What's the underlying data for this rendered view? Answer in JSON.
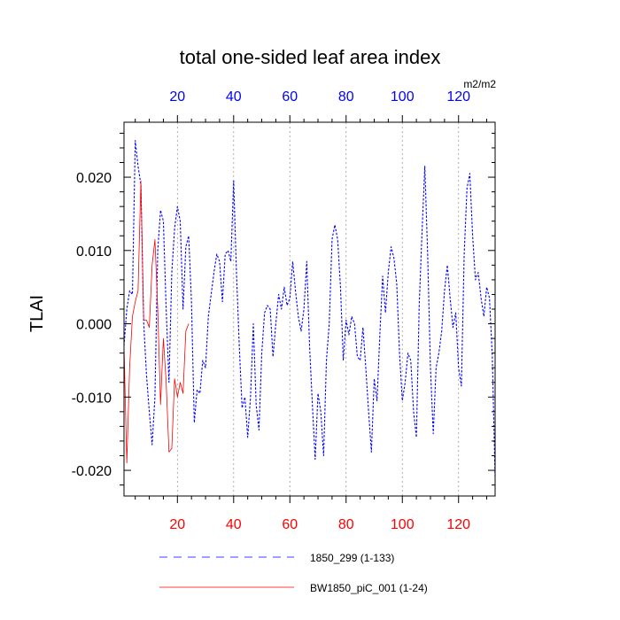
{
  "chart_data": {
    "type": "line",
    "title": "total one-sided leaf area index",
    "ylabel": "TLAI",
    "units_label": "m2/m2",
    "xlim": [
      1,
      133
    ],
    "ylim": [
      -0.0235,
      0.0275
    ],
    "grid": "vertical dotted lines at top-axis ticks",
    "legend_placement": "bottom",
    "top_axis": {
      "color": "#0000ff",
      "ticks": [
        20,
        40,
        60,
        80,
        100,
        120
      ],
      "tick_labels": [
        "20",
        "40",
        "60",
        "80",
        "100",
        "120"
      ]
    },
    "bottom_axis": {
      "color": "#ff0000",
      "ticks": [
        20,
        40,
        60,
        80,
        100,
        120
      ],
      "tick_labels": [
        "20",
        "40",
        "60",
        "80",
        "100",
        "120"
      ]
    },
    "left_axis": {
      "ticks": [
        -0.02,
        -0.01,
        0.0,
        0.01,
        0.02
      ],
      "tick_labels": [
        "-0.020",
        "-0.010",
        "0.000",
        "0.010",
        "0.020"
      ]
    },
    "series": [
      {
        "name": "1850_299 (1-133)",
        "color": "#0000ff",
        "dash": "dashed",
        "x": [
          1,
          2,
          3,
          4,
          5,
          6,
          7,
          8,
          9,
          10,
          11,
          12,
          13,
          14,
          15,
          16,
          17,
          18,
          19,
          20,
          21,
          22,
          23,
          24,
          25,
          26,
          27,
          28,
          29,
          30,
          31,
          32,
          33,
          34,
          35,
          36,
          37,
          38,
          39,
          40,
          41,
          42,
          43,
          44,
          45,
          46,
          47,
          48,
          49,
          50,
          51,
          52,
          53,
          54,
          55,
          56,
          57,
          58,
          59,
          60,
          61,
          62,
          63,
          64,
          65,
          66,
          67,
          68,
          69,
          70,
          71,
          72,
          73,
          74,
          75,
          76,
          77,
          78,
          79,
          80,
          81,
          82,
          83,
          84,
          85,
          86,
          87,
          88,
          89,
          90,
          91,
          92,
          93,
          94,
          95,
          96,
          97,
          98,
          99,
          100,
          101,
          102,
          103,
          104,
          105,
          106,
          107,
          108,
          109,
          110,
          111,
          112,
          113,
          114,
          115,
          116,
          117,
          118,
          119,
          120,
          121,
          122,
          123,
          124,
          125,
          126,
          127,
          128,
          129,
          130,
          131,
          132,
          133
        ],
        "y": [
          -0.003,
          0.002,
          0.0045,
          0.004,
          0.025,
          0.0215,
          0.019,
          0.0002,
          -0.007,
          -0.012,
          -0.0165,
          -0.01,
          0.01,
          0.0155,
          0.014,
          0.002,
          -0.008,
          0.007,
          0.013,
          0.016,
          0.014,
          0.002,
          0.0105,
          0.012,
          0.003,
          -0.0135,
          -0.009,
          -0.0095,
          -0.005,
          -0.006,
          0.001,
          0.004,
          0.007,
          0.0095,
          0.0085,
          0.003,
          0.0095,
          0.01,
          0.0085,
          0.0195,
          0.007,
          -0.003,
          -0.0115,
          -0.01,
          -0.0155,
          -0.01,
          0.0,
          -0.011,
          -0.0145,
          -0.004,
          0.0015,
          0.0025,
          0.002,
          -0.0045,
          0.0,
          0.004,
          0.002,
          0.005,
          0.0025,
          0.0035,
          0.0085,
          0.0045,
          0.001,
          -0.001,
          0.002,
          0.0085,
          -0.003,
          -0.011,
          -0.0185,
          -0.0095,
          -0.012,
          -0.018,
          -0.005,
          0.0,
          0.0115,
          0.0135,
          0.0115,
          0.005,
          -0.005,
          0.0005,
          -0.0015,
          0.001,
          0.0,
          -0.0045,
          -0.005,
          -0.0005,
          -0.006,
          -0.012,
          -0.0175,
          -0.0075,
          -0.0105,
          -0.0015,
          0.0065,
          0.0015,
          0.007,
          0.0105,
          0.009,
          0.0055,
          -0.004,
          -0.0105,
          -0.008,
          -0.004,
          -0.005,
          -0.012,
          -0.0155,
          0.0025,
          0.0125,
          0.0215,
          0.0095,
          -0.006,
          -0.015,
          -0.006,
          -0.004,
          -0.001,
          0.0045,
          0.008,
          0.0035,
          -0.0005,
          0.0015,
          -0.006,
          -0.0085,
          0.0095,
          0.0185,
          0.0205,
          0.012,
          0.006,
          0.007,
          0.0035,
          0.001,
          0.005,
          0.0035,
          -0.0045,
          -0.021
        ]
      },
      {
        "name": "BW1850_piC_001 (1-24)",
        "color": "#ff0000",
        "dash": "solid",
        "x": [
          1,
          2,
          3,
          4,
          5,
          6,
          7,
          8,
          9,
          10,
          11,
          12,
          13,
          14,
          15,
          16,
          17,
          18,
          19,
          20,
          21,
          22,
          23,
          24
        ],
        "y": [
          -0.003,
          -0.019,
          -0.006,
          0.001,
          0.003,
          0.0045,
          0.0195,
          0.0005,
          0.0005,
          -0.0005,
          0.008,
          0.0115,
          0.002,
          -0.011,
          -0.002,
          -0.008,
          -0.0175,
          -0.017,
          -0.0075,
          -0.01,
          -0.008,
          -0.0095,
          -0.001,
          0.0
        ]
      }
    ]
  }
}
